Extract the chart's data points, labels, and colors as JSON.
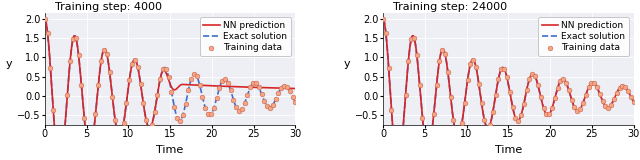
{
  "t_start": 0,
  "t_end": 30,
  "n_points": 600,
  "n_data": 90,
  "omega": 1.75,
  "decay": 0.07,
  "amplitude": 2.0,
  "ylim": [
    -0.75,
    2.15
  ],
  "yticks": [
    -0.5,
    0.0,
    0.5,
    1.0,
    1.5,
    2.0
  ],
  "xticks": [
    0,
    5,
    10,
    15,
    20,
    25,
    30
  ],
  "xlabel": "Time",
  "ylabel": "y",
  "title1": "Training step: 4000",
  "title2": "Training step: 24000",
  "legend_nn": "NN prediction",
  "legend_exact": "Exact solution",
  "legend_data": "Training data",
  "nn_color": "#d62728",
  "exact_color": "#3b6fca",
  "data_color": "#f4a582",
  "data_edgecolor": "#c05040",
  "bg_color": "#eeeef5",
  "nn_lw": 1.2,
  "exact_lw": 1.2,
  "data_size": 12,
  "data_lw": 0.3,
  "nn1_bad_start": 13.5,
  "nn1_transition": 3.0,
  "nn1_final_val": 0.08,
  "fontsize_title": 8,
  "fontsize_legend": 6.5,
  "fontsize_label": 8,
  "fontsize_tick": 7,
  "title_fontweight": "bold"
}
